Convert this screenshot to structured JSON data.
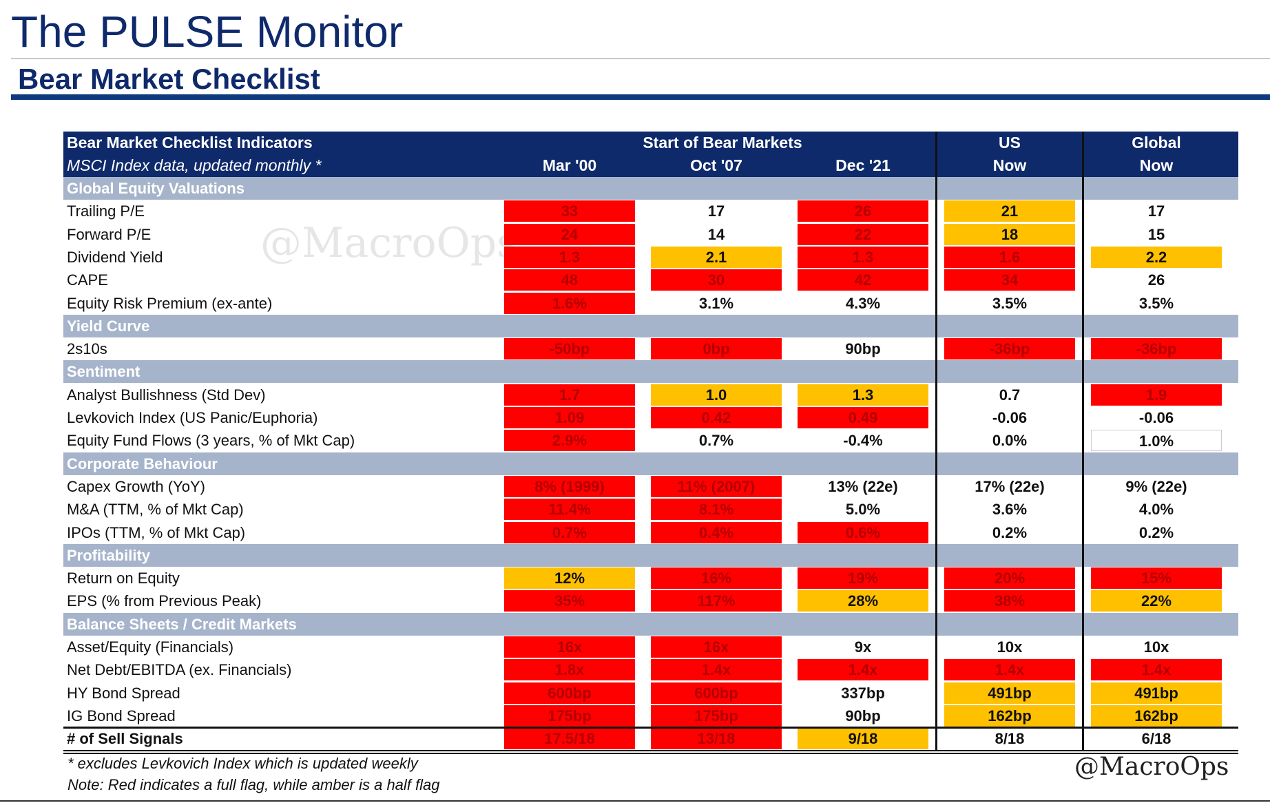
{
  "page": {
    "title": "The PULSE Monitor",
    "subtitle": "Bear Market Checklist",
    "watermark": "@MacroOps",
    "handle": "@MacroOps"
  },
  "colors": {
    "red": "#ff0000",
    "amber": "#ffc000",
    "navy": "#0f2a6b",
    "section": "#a6b4cb"
  },
  "chart_data": {
    "type": "table",
    "header": {
      "indicator_title": "Bear Market Checklist Indicators",
      "indicator_subtitle": "MSCI Index data, updated monthly *",
      "group_label": "Start of Bear Markets",
      "columns": [
        {
          "top": "",
          "bottom": "Mar '00"
        },
        {
          "top": "",
          "bottom": "Oct '07"
        },
        {
          "top": "",
          "bottom": "Dec '21"
        },
        {
          "top": "US",
          "bottom": "Now"
        },
        {
          "top": "Global",
          "bottom": "Now"
        }
      ]
    },
    "sections": [
      {
        "name": "Global Equity Valuations",
        "rows": [
          {
            "label": "Trailing P/E",
            "values": [
              "33",
              "17",
              "26",
              "21",
              "17"
            ],
            "flags": [
              "red",
              "",
              "red",
              "amber",
              ""
            ]
          },
          {
            "label": "Forward P/E",
            "values": [
              "24",
              "14",
              "22",
              "18",
              "15"
            ],
            "flags": [
              "red",
              "",
              "red",
              "amber",
              ""
            ]
          },
          {
            "label": "Dividend Yield",
            "values": [
              "1.3",
              "2.1",
              "1.3",
              "1.6",
              "2.2"
            ],
            "flags": [
              "red",
              "amber",
              "red",
              "red",
              "amber"
            ]
          },
          {
            "label": "CAPE",
            "values": [
              "48",
              "30",
              "42",
              "34",
              "26"
            ],
            "flags": [
              "red",
              "red",
              "red",
              "red",
              ""
            ]
          },
          {
            "label": "Equity Risk Premium  (ex-ante)",
            "values": [
              "1.6%",
              "3.1%",
              "4.3%",
              "3.5%",
              "3.5%"
            ],
            "flags": [
              "red",
              "",
              "",
              "",
              ""
            ]
          }
        ]
      },
      {
        "name": "Yield Curve",
        "rows": [
          {
            "label": "2s10s",
            "values": [
              "-50bp",
              "0bp",
              "90bp",
              "-36bp",
              "-36bp"
            ],
            "flags": [
              "red",
              "red",
              "",
              "red",
              "red"
            ]
          }
        ]
      },
      {
        "name": "Sentiment",
        "rows": [
          {
            "label": "Analyst Bullishness (Std Dev)",
            "values": [
              "1.7",
              "1.0",
              "1.3",
              "0.7",
              "1.9"
            ],
            "flags": [
              "red",
              "amber",
              "amber",
              "",
              "red"
            ]
          },
          {
            "label": "Levkovich Index (US Panic/Euphoria)",
            "values": [
              "1.09",
              "0.42",
              "0.49",
              "-0.06",
              "-0.06"
            ],
            "flags": [
              "red",
              "red",
              "red",
              "",
              ""
            ]
          },
          {
            "label": "Equity Fund Flows (3 years, % of Mkt Cap)",
            "values": [
              "2.9%",
              "0.7%",
              "-0.4%",
              "0.0%",
              "1.0%"
            ],
            "flags": [
              "red",
              "",
              "",
              "",
              "white"
            ]
          }
        ]
      },
      {
        "name": "Corporate Behaviour",
        "rows": [
          {
            "label": "Capex Growth (YoY)",
            "values": [
              "8% (1999)",
              "11% (2007)",
              "13% (22e)",
              "17% (22e)",
              "9% (22e)"
            ],
            "flags": [
              "red",
              "red",
              "",
              "",
              ""
            ]
          },
          {
            "label": "M&A (TTM, % of Mkt Cap)",
            "values": [
              "11.4%",
              "8.1%",
              "5.0%",
              "3.6%",
              "4.0%"
            ],
            "flags": [
              "red",
              "red",
              "",
              "",
              ""
            ]
          },
          {
            "label": "IPOs (TTM, % of Mkt Cap)",
            "values": [
              "0.7%",
              "0.4%",
              "0.6%",
              "0.2%",
              "0.2%"
            ],
            "flags": [
              "red",
              "red",
              "red",
              "",
              ""
            ]
          }
        ]
      },
      {
        "name": "Profitability",
        "rows": [
          {
            "label": "Return on Equity",
            "values": [
              "12%",
              "16%",
              "19%",
              "20%",
              "15%"
            ],
            "flags": [
              "amber",
              "red",
              "red",
              "red",
              "red"
            ]
          },
          {
            "label": "EPS  (% from Previous Peak)",
            "values": [
              "35%",
              "117%",
              "28%",
              "38%",
              "22%"
            ],
            "flags": [
              "red",
              "red",
              "amber",
              "red",
              "amber"
            ]
          }
        ]
      },
      {
        "name": "Balance Sheets / Credit Markets",
        "rows": [
          {
            "label": "Asset/Equity (Financials)",
            "values": [
              "16x",
              "16x",
              "9x",
              "10x",
              "10x"
            ],
            "flags": [
              "red",
              "red",
              "",
              "",
              ""
            ]
          },
          {
            "label": "Net Debt/EBITDA (ex. Financials)",
            "values": [
              "1.8x",
              "1.4x",
              "1.4x",
              "1.4x",
              "1.4x"
            ],
            "flags": [
              "red",
              "red",
              "red",
              "red",
              "red"
            ]
          },
          {
            "label": "HY Bond Spread",
            "values": [
              "600bp",
              "600bp",
              "337bp",
              "491bp",
              "491bp"
            ],
            "flags": [
              "red",
              "red",
              "",
              "amber",
              "amber"
            ]
          },
          {
            "label": "IG Bond Spread",
            "values": [
              "175bp",
              "175bp",
              "90bp",
              "162bp",
              "162bp"
            ],
            "flags": [
              "red",
              "red",
              "",
              "amber",
              "amber"
            ]
          }
        ]
      }
    ],
    "total": {
      "label": "# of Sell Signals",
      "values": [
        "17.5/18",
        "13/18",
        "9/18",
        "8/18",
        "6/18"
      ],
      "flags": [
        "red",
        "red",
        "amber",
        "",
        ""
      ]
    },
    "footnotes": [
      "* excludes Levkovich Index which is updated weekly",
      "Note: Red indicates a full flag, while amber is a half flag"
    ]
  }
}
